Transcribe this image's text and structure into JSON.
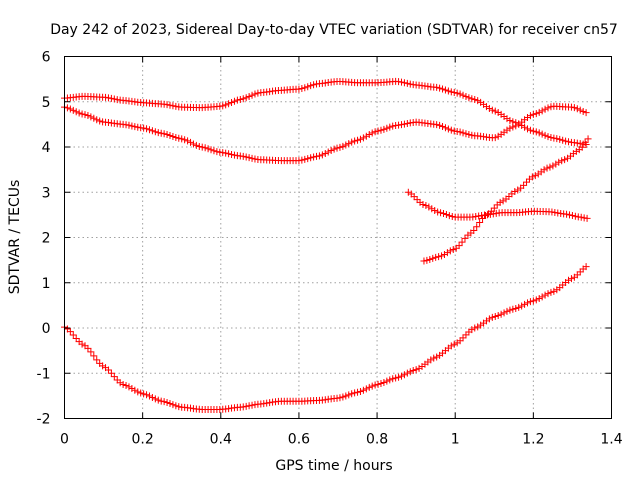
{
  "chart_data": {
    "type": "scatter",
    "title": "Day 242 of 2023, Sidereal Day-to-day VTEC variation (SDTVAR) for receiver cn57",
    "xlabel": "GPS time / hours",
    "ylabel": "SDTVAR / TECUs",
    "xlim": [
      0,
      1.4
    ],
    "ylim": [
      -2,
      6
    ],
    "xticks": [
      0,
      0.2,
      0.4,
      0.6,
      0.8,
      1,
      1.2,
      1.4
    ],
    "xtick_labels": [
      "0",
      "0.2",
      "0.4",
      "0.6",
      "0.8",
      "1",
      "1.2",
      "1.4"
    ],
    "yticks": [
      -2,
      -1,
      0,
      1,
      2,
      3,
      4,
      5,
      6
    ],
    "ytick_labels": [
      "-2",
      "-1",
      "0",
      "1",
      "2",
      "3",
      "4",
      "5",
      "6"
    ],
    "grid": true,
    "marker": "+",
    "color": "#ff0000",
    "series": [
      {
        "name": "series-1",
        "x": [
          0,
          0.05,
          0.1,
          0.15,
          0.2,
          0.25,
          0.3,
          0.35,
          0.4,
          0.45,
          0.5,
          0.55,
          0.6,
          0.65,
          0.7,
          0.75,
          0.8,
          0.85,
          0.9,
          0.95,
          1.0,
          1.05,
          1.1,
          1.15,
          1.2,
          1.25,
          1.3,
          1.34
        ],
        "y": [
          5.08,
          5.12,
          5.1,
          5.03,
          4.98,
          4.95,
          4.88,
          4.87,
          4.9,
          5.05,
          5.2,
          5.25,
          5.28,
          5.4,
          5.45,
          5.42,
          5.42,
          5.45,
          5.37,
          5.32,
          5.2,
          5.05,
          4.8,
          4.55,
          4.35,
          4.2,
          4.1,
          4.05
        ]
      },
      {
        "name": "series-2",
        "x": [
          0,
          0.05,
          0.1,
          0.15,
          0.2,
          0.25,
          0.3,
          0.35,
          0.4,
          0.45,
          0.5,
          0.55,
          0.6,
          0.65,
          0.7,
          0.75,
          0.8,
          0.85,
          0.9,
          0.95,
          1.0,
          1.05,
          1.1,
          1.15,
          1.2,
          1.25,
          1.3,
          1.34
        ],
        "y": [
          4.88,
          4.72,
          4.55,
          4.5,
          4.42,
          4.3,
          4.18,
          4.0,
          3.88,
          3.8,
          3.72,
          3.7,
          3.7,
          3.8,
          3.98,
          4.15,
          4.35,
          4.48,
          4.55,
          4.5,
          4.35,
          4.25,
          4.2,
          4.45,
          4.72,
          4.9,
          4.88,
          4.75
        ]
      },
      {
        "name": "series-3",
        "x": [
          0.88,
          0.92,
          0.96,
          1.0,
          1.04,
          1.08,
          1.12,
          1.16,
          1.2,
          1.24,
          1.28,
          1.32,
          1.34
        ],
        "y": [
          3.0,
          2.72,
          2.55,
          2.45,
          2.45,
          2.5,
          2.55,
          2.55,
          2.58,
          2.57,
          2.52,
          2.45,
          2.42
        ]
      },
      {
        "name": "series-4",
        "x": [
          0.92,
          0.96,
          1.0,
          1.04,
          1.08,
          1.12,
          1.16,
          1.2,
          1.24,
          1.28,
          1.32,
          1.34
        ],
        "y": [
          1.48,
          1.58,
          1.75,
          2.1,
          2.5,
          2.8,
          3.05,
          3.35,
          3.55,
          3.72,
          3.95,
          4.18
        ]
      },
      {
        "name": "series-5",
        "x": [
          0,
          0.05,
          0.1,
          0.15,
          0.2,
          0.25,
          0.3,
          0.35,
          0.4,
          0.45,
          0.5,
          0.55,
          0.6,
          0.65,
          0.7,
          0.75,
          0.8,
          0.85,
          0.9,
          0.95,
          1.0,
          1.05,
          1.1,
          1.15,
          1.2,
          1.25,
          1.3,
          1.34
        ],
        "y": [
          0.02,
          -0.38,
          -0.85,
          -1.25,
          -1.45,
          -1.62,
          -1.75,
          -1.8,
          -1.8,
          -1.75,
          -1.68,
          -1.62,
          -1.62,
          -1.6,
          -1.55,
          -1.42,
          -1.25,
          -1.1,
          -0.92,
          -0.65,
          -0.35,
          0.0,
          0.25,
          0.42,
          0.6,
          0.8,
          1.1,
          1.38
        ]
      }
    ]
  }
}
